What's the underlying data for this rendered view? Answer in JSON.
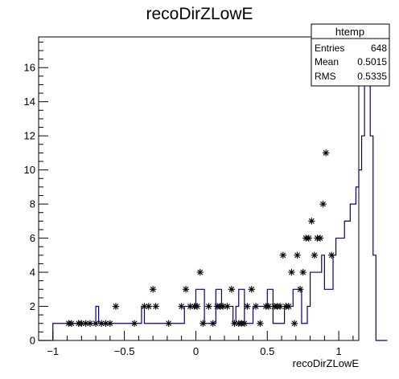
{
  "chart_data": {
    "type": "histogram",
    "title": "recoDirZLowE",
    "xlabel": "recoDirZLowE",
    "ylabel": "",
    "xlim": [
      -1.1,
      1.14
    ],
    "ylim": [
      0,
      17.8
    ],
    "x_ticks": [
      {
        "value": -1,
        "label": "−1"
      },
      {
        "value": -0.5,
        "label": "−0.5"
      },
      {
        "value": 0,
        "label": "0"
      },
      {
        "value": 0.5,
        "label": "0.5"
      },
      {
        "value": 1,
        "label": "1"
      }
    ],
    "y_ticks": [
      0,
      2,
      4,
      6,
      8,
      10,
      12,
      14,
      16
    ],
    "bins": {
      "low": -1.1,
      "width": 0.02,
      "counts": [
        0,
        0,
        0,
        0,
        0,
        1,
        1,
        1,
        1,
        1,
        1,
        1,
        1,
        1,
        1,
        1,
        1,
        1,
        1,
        1,
        2,
        1,
        1,
        1,
        1,
        1,
        1,
        1,
        1,
        1,
        1,
        1,
        1,
        1,
        1,
        1,
        2,
        1,
        1,
        1,
        1,
        1,
        1,
        1,
        1,
        1,
        1,
        1,
        1,
        1,
        1,
        2,
        2,
        2,
        2,
        3,
        3,
        3,
        1,
        1,
        1,
        1,
        3,
        3,
        2,
        2,
        2,
        2,
        1,
        2,
        3,
        3,
        1,
        1,
        1,
        2,
        2,
        2,
        2,
        2,
        3,
        3,
        1,
        1,
        1,
        1,
        2,
        2,
        2,
        3,
        3,
        3,
        1,
        1,
        2,
        4,
        4,
        4,
        4,
        5,
        3,
        3,
        3,
        5,
        6,
        6,
        6,
        7,
        7,
        8,
        8,
        9,
        10,
        12,
        16,
        17,
        12,
        5,
        0,
        0,
        0,
        0
      ]
    },
    "markers": [
      {
        "x": -0.89,
        "y": 1
      },
      {
        "x": -0.87,
        "y": 1
      },
      {
        "x": -0.82,
        "y": 1
      },
      {
        "x": -0.8,
        "y": 1
      },
      {
        "x": -0.77,
        "y": 1
      },
      {
        "x": -0.74,
        "y": 1
      },
      {
        "x": -0.7,
        "y": 1
      },
      {
        "x": -0.66,
        "y": 1
      },
      {
        "x": -0.63,
        "y": 1
      },
      {
        "x": -0.6,
        "y": 1
      },
      {
        "x": -0.56,
        "y": 2
      },
      {
        "x": -0.43,
        "y": 1
      },
      {
        "x": -0.36,
        "y": 2
      },
      {
        "x": -0.33,
        "y": 2
      },
      {
        "x": -0.3,
        "y": 3
      },
      {
        "x": -0.28,
        "y": 2
      },
      {
        "x": -0.19,
        "y": 1
      },
      {
        "x": -0.1,
        "y": 2
      },
      {
        "x": -0.07,
        "y": 3
      },
      {
        "x": -0.04,
        "y": 2
      },
      {
        "x": -0.01,
        "y": 2
      },
      {
        "x": 0.01,
        "y": 2
      },
      {
        "x": 0.03,
        "y": 4
      },
      {
        "x": 0.05,
        "y": 1
      },
      {
        "x": 0.09,
        "y": 2
      },
      {
        "x": 0.12,
        "y": 1
      },
      {
        "x": 0.15,
        "y": 2
      },
      {
        "x": 0.17,
        "y": 2
      },
      {
        "x": 0.19,
        "y": 2
      },
      {
        "x": 0.22,
        "y": 2
      },
      {
        "x": 0.25,
        "y": 3
      },
      {
        "x": 0.27,
        "y": 1
      },
      {
        "x": 0.3,
        "y": 1
      },
      {
        "x": 0.32,
        "y": 1
      },
      {
        "x": 0.34,
        "y": 1
      },
      {
        "x": 0.36,
        "y": 2
      },
      {
        "x": 0.39,
        "y": 3
      },
      {
        "x": 0.42,
        "y": 2
      },
      {
        "x": 0.45,
        "y": 1
      },
      {
        "x": 0.49,
        "y": 2
      },
      {
        "x": 0.51,
        "y": 2
      },
      {
        "x": 0.55,
        "y": 2
      },
      {
        "x": 0.57,
        "y": 2
      },
      {
        "x": 0.59,
        "y": 2
      },
      {
        "x": 0.61,
        "y": 5
      },
      {
        "x": 0.63,
        "y": 2
      },
      {
        "x": 0.65,
        "y": 2
      },
      {
        "x": 0.67,
        "y": 4
      },
      {
        "x": 0.69,
        "y": 1
      },
      {
        "x": 0.71,
        "y": 5
      },
      {
        "x": 0.73,
        "y": 3
      },
      {
        "x": 0.75,
        "y": 4
      },
      {
        "x": 0.77,
        "y": 6
      },
      {
        "x": 0.79,
        "y": 6
      },
      {
        "x": 0.81,
        "y": 7
      },
      {
        "x": 0.83,
        "y": 5
      },
      {
        "x": 0.85,
        "y": 6
      },
      {
        "x": 0.87,
        "y": 6
      },
      {
        "x": 0.89,
        "y": 8
      },
      {
        "x": 0.91,
        "y": 11
      },
      {
        "x": 0.93,
        "y": 18
      },
      {
        "x": 0.95,
        "y": 5
      }
    ],
    "histogram_color": "#000080",
    "marker_color": "#000000",
    "stats_box": {
      "title": "htemp",
      "rows": [
        {
          "label": "Entries",
          "value": "648"
        },
        {
          "label": "Mean",
          "value": "0.5015"
        },
        {
          "label": "RMS",
          "value": "0.5335"
        }
      ]
    }
  }
}
